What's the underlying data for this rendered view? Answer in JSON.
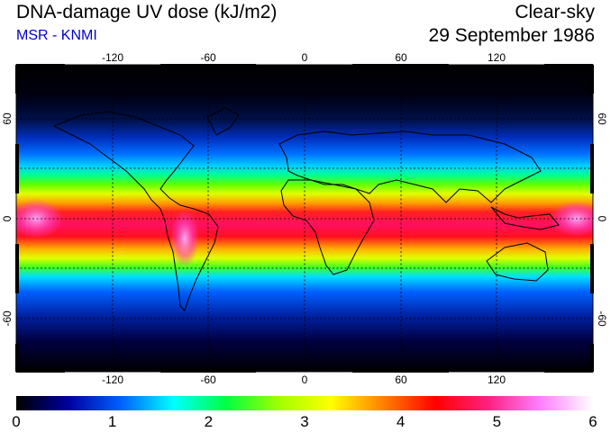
{
  "header": {
    "title": "DNA-damage UV dose (kJ/m2)",
    "source": "MSR - KNMI",
    "condition": "Clear-sky",
    "date": "29 September 1986"
  },
  "map": {
    "longitude_ticks": [
      "-120",
      "-60",
      "0",
      "60",
      "120"
    ],
    "latitude_ticks": [
      "60",
      "0",
      "-60"
    ],
    "projection": "equirectangular",
    "gridlines": "dashed",
    "coastlines": true
  },
  "colorbar": {
    "labels": [
      "0",
      "1",
      "2",
      "3",
      "4",
      "5",
      "6"
    ],
    "min": 0,
    "max": 6,
    "colors": [
      "#000000",
      "#0000a0",
      "#0060ff",
      "#00ffff",
      "#00ff40",
      "#a0ff00",
      "#ffff00",
      "#ff8000",
      "#ff0000",
      "#ff2080",
      "#ff80ff",
      "#ffffff"
    ]
  }
}
